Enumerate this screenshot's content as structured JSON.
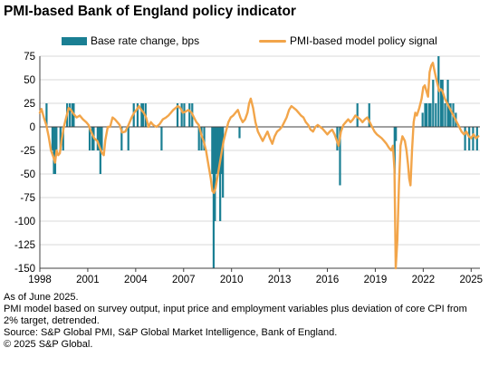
{
  "title": "PMI-based Bank of England policy indicator",
  "colors": {
    "bars": "#1a7f93",
    "line": "#f2a54a",
    "grid": "#d9d9d9",
    "axis": "#404040"
  },
  "chart_data": {
    "type": "bar+line",
    "series": [
      {
        "name": "Base rate change, bps",
        "type": "bar",
        "points": [
          [
            1998.42,
            25
          ],
          [
            1998.79,
            -25
          ],
          [
            1998.88,
            -50
          ],
          [
            1998.96,
            -50
          ],
          [
            1999.04,
            -25
          ],
          [
            1999.29,
            -25
          ],
          [
            1999.46,
            -25
          ],
          [
            1999.71,
            25
          ],
          [
            1999.88,
            25
          ],
          [
            2000.04,
            25
          ],
          [
            2000.12,
            25
          ],
          [
            2001.12,
            -25
          ],
          [
            2001.29,
            -25
          ],
          [
            2001.37,
            -25
          ],
          [
            2001.62,
            -25
          ],
          [
            2001.71,
            -25
          ],
          [
            2001.79,
            -50
          ],
          [
            2001.88,
            -25
          ],
          [
            2003.12,
            -25
          ],
          [
            2003.54,
            -25
          ],
          [
            2003.88,
            25
          ],
          [
            2004.12,
            25
          ],
          [
            2004.37,
            25
          ],
          [
            2004.46,
            25
          ],
          [
            2004.62,
            25
          ],
          [
            2005.62,
            -25
          ],
          [
            2006.62,
            25
          ],
          [
            2006.88,
            25
          ],
          [
            2007.04,
            25
          ],
          [
            2007.37,
            25
          ],
          [
            2007.54,
            25
          ],
          [
            2007.96,
            -25
          ],
          [
            2008.12,
            -25
          ],
          [
            2008.29,
            -25
          ],
          [
            2008.79,
            -50
          ],
          [
            2008.88,
            -150
          ],
          [
            2008.96,
            -100
          ],
          [
            2009.04,
            -50
          ],
          [
            2009.12,
            -50
          ],
          [
            2009.21,
            -50
          ],
          [
            2009.29,
            -100
          ],
          [
            2009.37,
            -50
          ],
          [
            2009.46,
            -75
          ],
          [
            2010.5,
            -12
          ],
          [
            2016.62,
            -25
          ],
          [
            2016.79,
            -62
          ],
          [
            2017.88,
            25
          ],
          [
            2018.62,
            25
          ],
          [
            2020.21,
            -50
          ],
          [
            2020.29,
            -15
          ],
          [
            2021.96,
            15
          ],
          [
            2022.12,
            25
          ],
          [
            2022.21,
            25
          ],
          [
            2022.37,
            25
          ],
          [
            2022.46,
            25
          ],
          [
            2022.62,
            50
          ],
          [
            2022.79,
            25
          ],
          [
            2022.96,
            75
          ],
          [
            2023.12,
            50
          ],
          [
            2023.21,
            50
          ],
          [
            2023.37,
            25
          ],
          [
            2023.54,
            50
          ],
          [
            2023.62,
            25
          ],
          [
            2023.71,
            25
          ],
          [
            2023.88,
            25
          ],
          [
            2024.04,
            15
          ],
          [
            2024.62,
            -25
          ],
          [
            2024.88,
            -25
          ],
          [
            2025.12,
            -25
          ],
          [
            2025.37,
            -25
          ]
        ]
      },
      {
        "name": "PMI-based model policy signal",
        "type": "line",
        "points": [
          [
            1998.0,
            15
          ],
          [
            1998.1,
            19
          ],
          [
            1998.25,
            10
          ],
          [
            1998.4,
            2
          ],
          [
            1998.55,
            -10
          ],
          [
            1998.7,
            -25
          ],
          [
            1998.85,
            -32
          ],
          [
            1998.95,
            -38
          ],
          [
            1999.05,
            -25
          ],
          [
            1999.15,
            -30
          ],
          [
            1999.25,
            -28
          ],
          [
            1999.35,
            -15
          ],
          [
            1999.5,
            0
          ],
          [
            1999.65,
            10
          ],
          [
            1999.8,
            20
          ],
          [
            1999.95,
            18
          ],
          [
            2000.1,
            14
          ],
          [
            2000.3,
            10
          ],
          [
            2000.5,
            12
          ],
          [
            2000.7,
            8
          ],
          [
            2000.9,
            5
          ],
          [
            2001.05,
            2
          ],
          [
            2001.2,
            -5
          ],
          [
            2001.4,
            -12
          ],
          [
            2001.6,
            -15
          ],
          [
            2001.75,
            -22
          ],
          [
            2001.9,
            -28
          ],
          [
            2002.0,
            -30
          ],
          [
            2002.1,
            -14
          ],
          [
            2002.25,
            0
          ],
          [
            2002.4,
            0
          ],
          [
            2002.55,
            10
          ],
          [
            2002.7,
            8
          ],
          [
            2002.85,
            5
          ],
          [
            2003.0,
            2
          ],
          [
            2003.15,
            -6
          ],
          [
            2003.35,
            -5
          ],
          [
            2003.55,
            2
          ],
          [
            2003.75,
            10
          ],
          [
            2003.9,
            15
          ],
          [
            2004.05,
            18
          ],
          [
            2004.2,
            22
          ],
          [
            2004.35,
            18
          ],
          [
            2004.5,
            15
          ],
          [
            2004.65,
            10
          ],
          [
            2004.8,
            0
          ],
          [
            2004.95,
            5
          ],
          [
            2005.1,
            2
          ],
          [
            2005.3,
            0
          ],
          [
            2005.5,
            3
          ],
          [
            2005.7,
            8
          ],
          [
            2005.9,
            10
          ],
          [
            2006.05,
            12
          ],
          [
            2006.2,
            15
          ],
          [
            2006.35,
            18
          ],
          [
            2006.5,
            20
          ],
          [
            2006.65,
            22
          ],
          [
            2006.8,
            20
          ],
          [
            2006.95,
            15
          ],
          [
            2007.1,
            16
          ],
          [
            2007.3,
            18
          ],
          [
            2007.5,
            15
          ],
          [
            2007.65,
            10
          ],
          [
            2007.8,
            5
          ],
          [
            2007.95,
            2
          ],
          [
            2008.1,
            -8
          ],
          [
            2008.25,
            -15
          ],
          [
            2008.4,
            -25
          ],
          [
            2008.55,
            -40
          ],
          [
            2008.7,
            -55
          ],
          [
            2008.8,
            -68
          ],
          [
            2008.9,
            -70
          ],
          [
            2009.0,
            -65
          ],
          [
            2009.1,
            -55
          ],
          [
            2009.2,
            -45
          ],
          [
            2009.35,
            -30
          ],
          [
            2009.5,
            -15
          ],
          [
            2009.65,
            -5
          ],
          [
            2009.8,
            5
          ],
          [
            2009.95,
            10
          ],
          [
            2010.1,
            12
          ],
          [
            2010.25,
            15
          ],
          [
            2010.4,
            18
          ],
          [
            2010.55,
            10
          ],
          [
            2010.7,
            5
          ],
          [
            2010.85,
            8
          ],
          [
            2011.0,
            15
          ],
          [
            2011.1,
            25
          ],
          [
            2011.2,
            30
          ],
          [
            2011.35,
            20
          ],
          [
            2011.5,
            5
          ],
          [
            2011.65,
            -5
          ],
          [
            2011.8,
            -10
          ],
          [
            2011.95,
            -15
          ],
          [
            2012.1,
            -10
          ],
          [
            2012.25,
            -5
          ],
          [
            2012.4,
            -12
          ],
          [
            2012.55,
            -18
          ],
          [
            2012.7,
            -10
          ],
          [
            2012.85,
            -5
          ],
          [
            2013.0,
            -3
          ],
          [
            2013.15,
            0
          ],
          [
            2013.3,
            5
          ],
          [
            2013.45,
            10
          ],
          [
            2013.6,
            18
          ],
          [
            2013.75,
            22
          ],
          [
            2013.9,
            20
          ],
          [
            2014.05,
            18
          ],
          [
            2014.2,
            15
          ],
          [
            2014.35,
            12
          ],
          [
            2014.5,
            10
          ],
          [
            2014.65,
            5
          ],
          [
            2014.8,
            2
          ],
          [
            2014.95,
            -3
          ],
          [
            2015.1,
            -5
          ],
          [
            2015.25,
            0
          ],
          [
            2015.4,
            2
          ],
          [
            2015.55,
            0
          ],
          [
            2015.7,
            -2
          ],
          [
            2015.85,
            -5
          ],
          [
            2016.0,
            -8
          ],
          [
            2016.15,
            -5
          ],
          [
            2016.3,
            -3
          ],
          [
            2016.45,
            -8
          ],
          [
            2016.6,
            -15
          ],
          [
            2016.7,
            -20
          ],
          [
            2016.85,
            -5
          ],
          [
            2017.0,
            2
          ],
          [
            2017.15,
            5
          ],
          [
            2017.3,
            8
          ],
          [
            2017.45,
            5
          ],
          [
            2017.6,
            8
          ],
          [
            2017.75,
            12
          ],
          [
            2017.9,
            10
          ],
          [
            2018.05,
            8
          ],
          [
            2018.2,
            5
          ],
          [
            2018.35,
            8
          ],
          [
            2018.5,
            10
          ],
          [
            2018.65,
            5
          ],
          [
            2018.8,
            0
          ],
          [
            2018.95,
            -5
          ],
          [
            2019.1,
            -8
          ],
          [
            2019.25,
            -10
          ],
          [
            2019.4,
            -12
          ],
          [
            2019.55,
            -15
          ],
          [
            2019.7,
            -18
          ],
          [
            2019.85,
            -22
          ],
          [
            2020.0,
            -25
          ],
          [
            2020.1,
            -20
          ],
          [
            2020.2,
            -45
          ],
          [
            2020.28,
            -150
          ],
          [
            2020.38,
            -120
          ],
          [
            2020.48,
            -60
          ],
          [
            2020.58,
            -20
          ],
          [
            2020.7,
            -10
          ],
          [
            2020.85,
            -15
          ],
          [
            2020.95,
            -25
          ],
          [
            2021.05,
            -40
          ],
          [
            2021.12,
            -55
          ],
          [
            2021.2,
            -62
          ],
          [
            2021.3,
            -25
          ],
          [
            2021.4,
            5
          ],
          [
            2021.5,
            15
          ],
          [
            2021.6,
            12
          ],
          [
            2021.75,
            20
          ],
          [
            2021.9,
            30
          ],
          [
            2022.0,
            42
          ],
          [
            2022.1,
            44
          ],
          [
            2022.2,
            38
          ],
          [
            2022.3,
            32
          ],
          [
            2022.4,
            58
          ],
          [
            2022.5,
            65
          ],
          [
            2022.6,
            68
          ],
          [
            2022.7,
            60
          ],
          [
            2022.8,
            52
          ],
          [
            2022.9,
            45
          ],
          [
            2023.0,
            38
          ],
          [
            2023.1,
            40
          ],
          [
            2023.2,
            38
          ],
          [
            2023.35,
            30
          ],
          [
            2023.5,
            25
          ],
          [
            2023.65,
            20
          ],
          [
            2023.8,
            15
          ],
          [
            2023.95,
            10
          ],
          [
            2024.1,
            5
          ],
          [
            2024.25,
            0
          ],
          [
            2024.4,
            -5
          ],
          [
            2024.55,
            -8
          ],
          [
            2024.7,
            -5
          ],
          [
            2024.85,
            -10
          ],
          [
            2025.0,
            -12
          ],
          [
            2025.15,
            -8
          ],
          [
            2025.3,
            -12
          ],
          [
            2025.45,
            -10
          ]
        ]
      }
    ],
    "xlim": [
      1998,
      2025.55
    ],
    "xticks": [
      "1998",
      "2001",
      "2004",
      "2007",
      "2010",
      "2013",
      "2016",
      "2019",
      "2022",
      "2025"
    ],
    "xtick_values": [
      1998,
      2001,
      2004,
      2007,
      2010,
      2013,
      2016,
      2019,
      2022,
      2025
    ],
    "ylim": [
      -150,
      75
    ],
    "yticks": [
      "75",
      "50",
      "25",
      "0",
      "-25",
      "-50",
      "-75",
      "-100",
      "-125",
      "-150"
    ],
    "ytick_values": [
      75,
      50,
      25,
      0,
      -25,
      -50,
      -75,
      -100,
      -125,
      -150
    ],
    "grid": "horizontal",
    "legend_position": "top"
  },
  "notes": [
    "As of June 2025.",
    "PMI model based on survey output, input price and employment variables plus deviation of core CPI from 2% target, detrended.",
    "Source: S&P Global PMI, S&P Global Market Intelligence, Bank of England.",
    "© 2025 S&P Global."
  ]
}
